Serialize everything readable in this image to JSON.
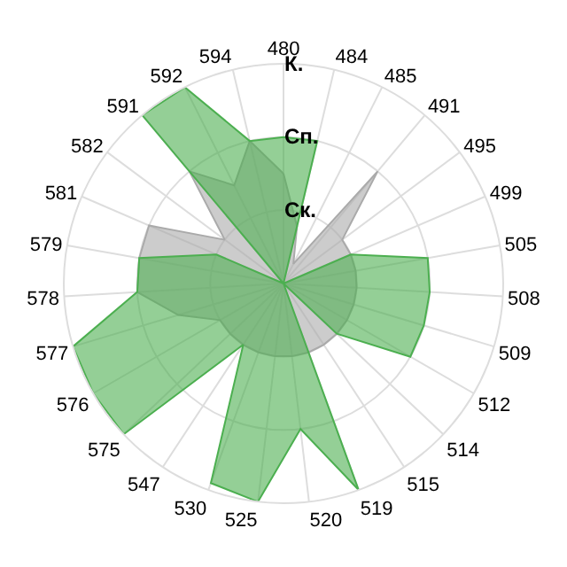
{
  "chart_data": {
    "type": "radar",
    "categories": [
      "480",
      "484",
      "485",
      "491",
      "495",
      "499",
      "505",
      "508",
      "509",
      "512",
      "514",
      "515",
      "519",
      "520",
      "525",
      "530",
      "547",
      "575",
      "576",
      "577",
      "578",
      "579",
      "581",
      "582",
      "591",
      "592",
      "594"
    ],
    "ylim": [
      0,
      3
    ],
    "yticks": [
      {
        "value": 1,
        "label": "Ск."
      },
      {
        "value": 2,
        "label": "Сп."
      },
      {
        "value": 3,
        "label": "К."
      }
    ],
    "grid": true,
    "series": [
      {
        "color": "#aaaaaa",
        "values": [
          1.5,
          0.8,
          0.3,
          2,
          1,
          1,
          1,
          1,
          1,
          1,
          1,
          1,
          1,
          1,
          1,
          1,
          1,
          1,
          1,
          1.5,
          2,
          2,
          2,
          1,
          2,
          1.5,
          2
        ]
      },
      {
        "color": "#4caf50",
        "values": [
          2,
          2,
          0,
          0,
          0,
          1,
          2,
          2,
          2,
          2,
          1,
          0,
          3,
          2,
          3,
          2.9,
          1,
          3,
          3,
          3,
          2,
          2,
          1,
          0,
          3,
          3,
          2
        ]
      }
    ]
  }
}
